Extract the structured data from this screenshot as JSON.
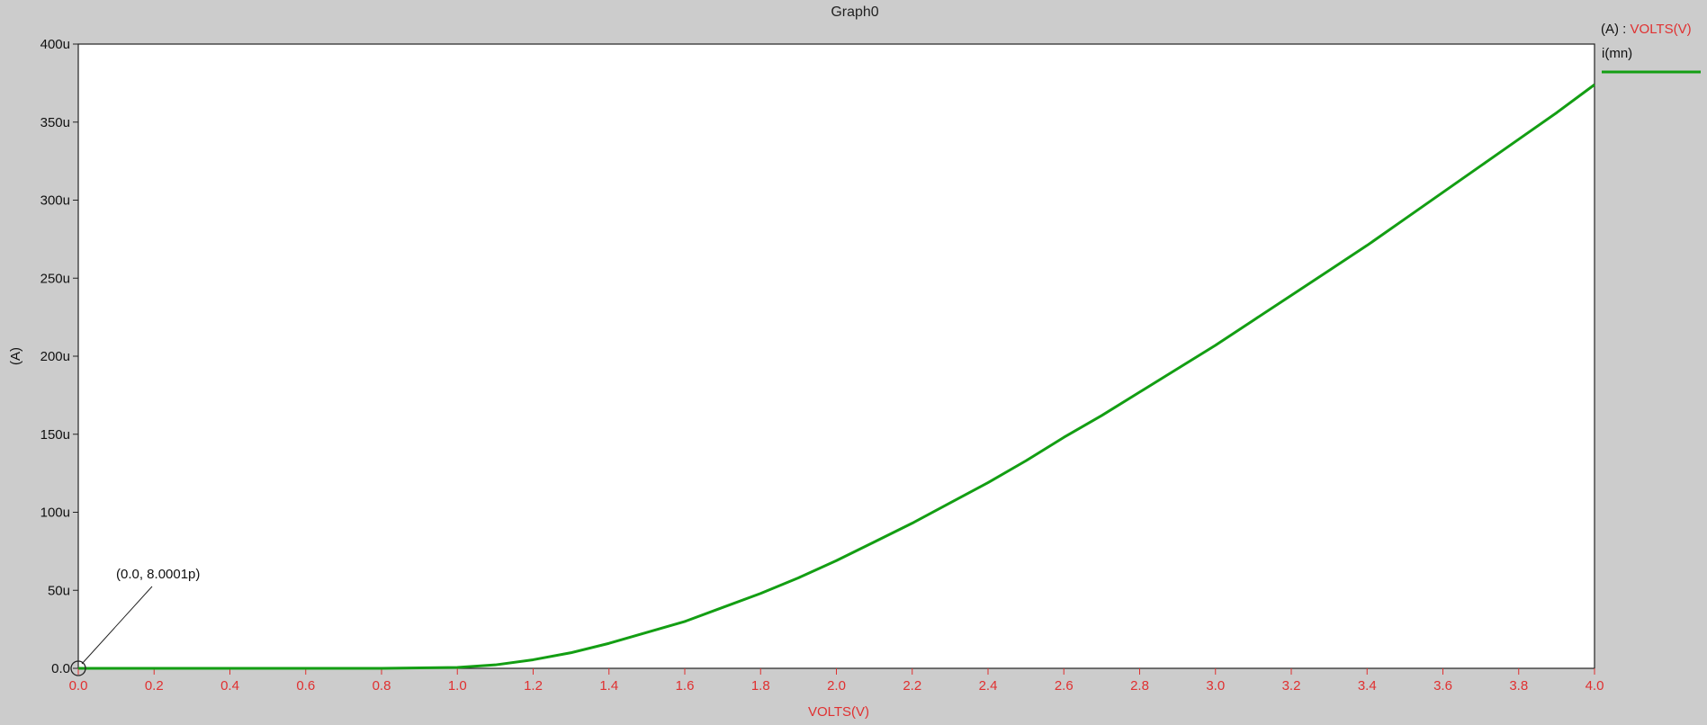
{
  "chart_data": {
    "type": "line",
    "title": "Graph0",
    "xlabel": "VOLTS(V)",
    "ylabel": "(A)",
    "xlim": [
      0.0,
      4.0
    ],
    "ylim": [
      0,
      400
    ],
    "x_ticks": [
      "0.0",
      "0.2",
      "0.4",
      "0.6",
      "0.8",
      "1.0",
      "1.2",
      "1.4",
      "1.6",
      "1.8",
      "2.0",
      "2.2",
      "2.4",
      "2.6",
      "2.8",
      "3.0",
      "3.2",
      "3.4",
      "3.6",
      "3.8",
      "4.0"
    ],
    "y_ticks": [
      "0.0",
      "50u",
      "100u",
      "150u",
      "200u",
      "250u",
      "300u",
      "350u",
      "400u"
    ],
    "grid": false,
    "legend": {
      "placement": "right",
      "axis_label": "(A)",
      "separator": " : ",
      "axis_name": "VOLTS(V)"
    },
    "series": [
      {
        "name": "i(mn)",
        "color": "#139e13",
        "x": [
          0.0,
          0.2,
          0.4,
          0.6,
          0.8,
          1.0,
          1.1,
          1.2,
          1.3,
          1.4,
          1.5,
          1.6,
          1.7,
          1.8,
          1.9,
          2.0,
          2.1,
          2.2,
          2.3,
          2.4,
          2.5,
          2.6,
          2.7,
          2.8,
          2.9,
          3.0,
          3.1,
          3.2,
          3.3,
          3.4,
          3.5,
          3.6,
          3.7,
          3.8,
          3.9,
          4.0
        ],
        "y": [
          8e-06,
          8e-06,
          8e-06,
          8e-06,
          1e-05,
          0.6,
          2.2,
          5.5,
          10,
          16,
          23,
          30,
          39,
          48,
          58,
          69,
          81,
          93,
          106,
          119,
          133,
          148,
          162,
          177,
          192,
          207,
          223,
          239,
          255,
          271,
          288,
          305,
          322,
          339,
          356,
          374
        ]
      }
    ],
    "annotation": {
      "text": "(0.0, 8.0001p)",
      "x": 0.0,
      "y": 8e-06
    }
  }
}
